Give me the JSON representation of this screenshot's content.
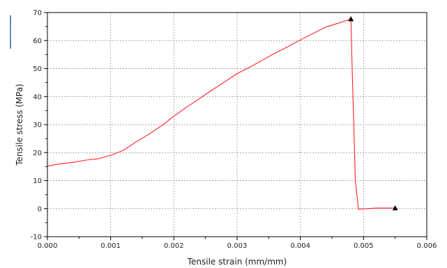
{
  "chart_data": {
    "type": "line",
    "xlabel": "Tensile strain (mm/mm)",
    "ylabel": "Tensile stress (MPa)",
    "xlim": [
      0.0,
      0.006
    ],
    "ylim": [
      -10,
      70
    ],
    "x_ticks": [
      "0.000",
      "0.001",
      "0.002",
      "0.003",
      "0.004",
      "0.005",
      "0.006"
    ],
    "y_ticks": [
      "-10",
      "0",
      "10",
      "20",
      "30",
      "40",
      "50",
      "60",
      "70"
    ],
    "grid": true,
    "series": [
      {
        "color": "#ff2020",
        "x": [
          0.0,
          0.0002,
          0.0004,
          0.0006,
          0.0008,
          0.001,
          0.0012,
          0.0014,
          0.0016,
          0.0018,
          0.002,
          0.0022,
          0.0024,
          0.0026,
          0.0028,
          0.003,
          0.0032,
          0.0034,
          0.0036,
          0.0038,
          0.004,
          0.0042,
          0.0044,
          0.0046,
          0.0048,
          0.00482,
          0.00487,
          0.00492,
          0.0052,
          0.0055
        ],
        "y": [
          15.2,
          16.0,
          16.5,
          17.3,
          17.8,
          19.0,
          20.8,
          23.8,
          26.5,
          29.5,
          33.0,
          36.2,
          39.2,
          42.3,
          45.2,
          48.2,
          50.5,
          53.0,
          55.5,
          57.8,
          60.2,
          62.5,
          64.8,
          66.2,
          67.7,
          50.0,
          10.0,
          -0.2,
          0.2,
          0.2
        ]
      }
    ],
    "markers": [
      {
        "x": 0.0048,
        "y": 67.7,
        "shape": "triangle"
      },
      {
        "x": 0.0055,
        "y": 0.2,
        "shape": "triangle"
      }
    ]
  }
}
